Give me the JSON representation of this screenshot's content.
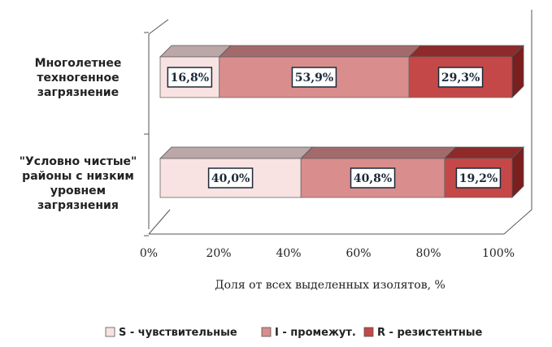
{
  "chart_data": {
    "type": "bar",
    "orientation": "horizontal-stacked-100",
    "categories": [
      [
        "Многолетнее",
        "техногенное",
        "загрязнение"
      ],
      [
        "\"Условно чистые\"",
        "районы с низким",
        "уровнем",
        "загрязнения"
      ]
    ],
    "series": [
      {
        "name": "S - чувствительные",
        "values": [
          16.8,
          40.0
        ],
        "labels": [
          "16,8%",
          "40,0%"
        ],
        "color": "#f9e2e2",
        "top_color": "#bba6a8",
        "side_color": "#d9c4c6"
      },
      {
        "name": "I  - промежут.",
        "values": [
          53.9,
          40.8
        ],
        "labels": [
          "53,9%",
          "40,8%"
        ],
        "color": "#d98d8d",
        "top_color": "#a36a6c",
        "side_color": "#b97878"
      },
      {
        "name": "R - резистентные",
        "values": [
          29.3,
          19.2
        ],
        "labels": [
          "29,3%",
          "19,2%"
        ],
        "color": "#c54848",
        "top_color": "#8e2a2a",
        "side_color": "#7a1e1e"
      }
    ],
    "xlim": [
      0,
      100
    ],
    "xticks": [
      "0%",
      "20%",
      "40%",
      "60%",
      "80%",
      "100%"
    ],
    "xlabel": "Доля от всех выделенных изолятов, %",
    "legend_position": "bottom",
    "grid": false
  }
}
